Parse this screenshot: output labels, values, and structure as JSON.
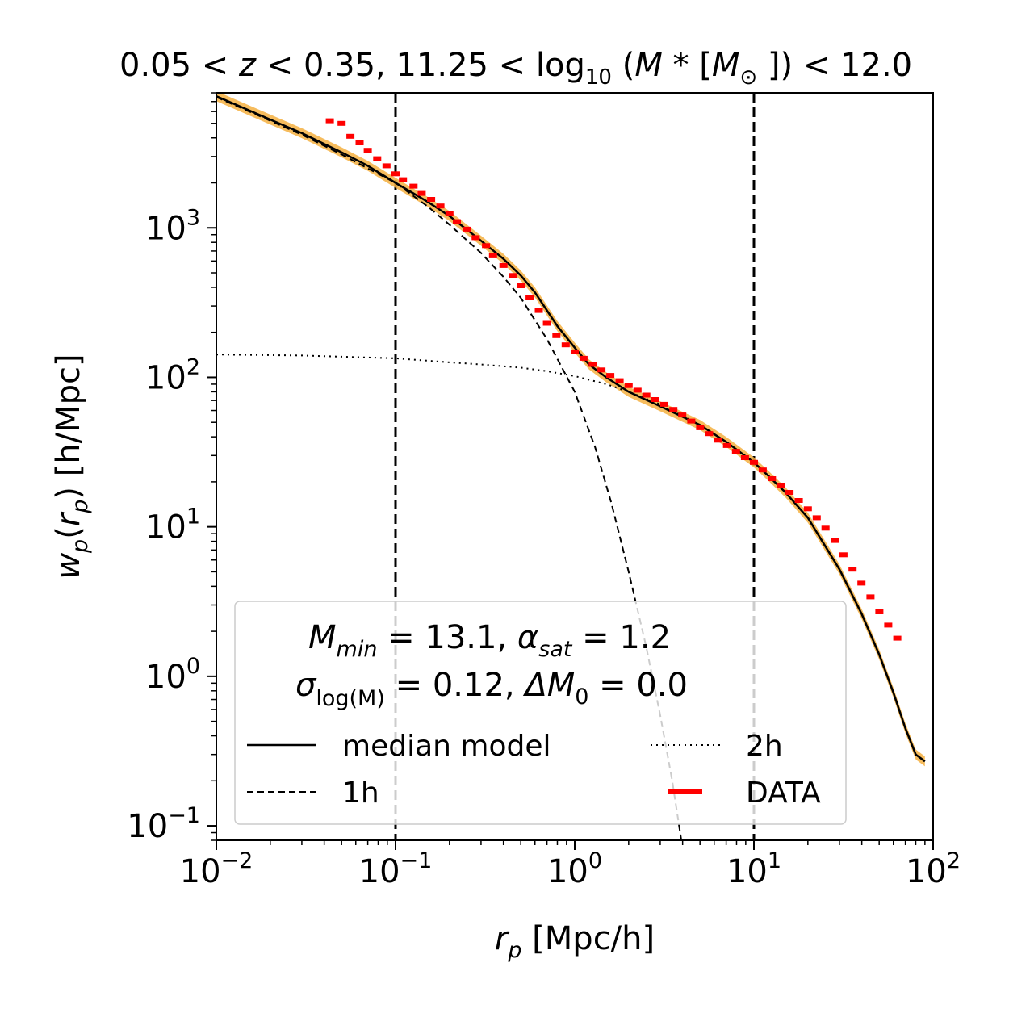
{
  "chart_data": {
    "type": "line",
    "title": {
      "prefix": "0.05 < ",
      "z": "z",
      "mid": " < 0.35, 11.25 < log",
      "log_sub": "10",
      "paren_open": " (",
      "m": "M",
      "star": " * [",
      "msun": "M",
      "sun_sub": "⊙",
      "close": " ]) < 12.0"
    },
    "xlabel": {
      "sym": "r",
      "sub": "p",
      "unit": " [Mpc/h]"
    },
    "ylabel": {
      "sym": "w",
      "sub_p": "p",
      "open": "(",
      "r": "r",
      "sub_p2": "p",
      "close": ") [h/Mpc]"
    },
    "xscale": "log",
    "yscale": "log",
    "xlim": [
      0.01,
      100
    ],
    "ylim": [
      0.08,
      8000
    ],
    "xticks": [
      {
        "value": 0.01,
        "base": "10",
        "exp": "−2"
      },
      {
        "value": 0.1,
        "base": "10",
        "exp": "−1"
      },
      {
        "value": 1,
        "base": "10",
        "exp": "0"
      },
      {
        "value": 10,
        "base": "10",
        "exp": "1"
      },
      {
        "value": 100,
        "base": "10",
        "exp": "2"
      }
    ],
    "yticks": [
      {
        "value": 0.1,
        "base": "10",
        "exp": "−1"
      },
      {
        "value": 1,
        "base": "10",
        "exp": "0"
      },
      {
        "value": 10,
        "base": "10",
        "exp": "1"
      },
      {
        "value": 100,
        "base": "10",
        "exp": "2"
      },
      {
        "value": 1000,
        "base": "10",
        "exp": "3"
      }
    ],
    "vlines": [
      0.1,
      10
    ],
    "legend": {
      "placement": "lower-left",
      "param_line1": {
        "m": "M",
        "m_sub": "min",
        "v1": " = 13.1, ",
        "alpha": "α",
        "alpha_sub": "sat",
        "v2": " = 1.2"
      },
      "param_line2": {
        "sigma": "σ",
        "sigma_sub": "log(M)",
        "v1": " = 0.12, ",
        "delta": "ΔM",
        "delta_sub": "0",
        "v2": " = 0.0"
      },
      "entries": [
        {
          "key": "median",
          "label": "median model"
        },
        {
          "key": "two_halo",
          "label": "2h"
        },
        {
          "key": "one_halo",
          "label": "1h"
        },
        {
          "key": "data",
          "label": "DATA"
        }
      ]
    },
    "colors": {
      "median": "#000000",
      "band": "#f5b041",
      "data": "#ff0000",
      "one_halo": "#000000",
      "two_halo": "#000000",
      "vline": "#000000"
    },
    "series": [
      {
        "key": "median",
        "name": "median model",
        "x": [
          0.01,
          0.02,
          0.03,
          0.05,
          0.07,
          0.1,
          0.15,
          0.2,
          0.3,
          0.4,
          0.5,
          0.6,
          0.8,
          1.0,
          1.2,
          1.5,
          2.0,
          3.0,
          5.0,
          7.0,
          10.0,
          12.0,
          15.0,
          20.0,
          30.0,
          40.0,
          50.0,
          60.0,
          70.0,
          80.0,
          90.0
        ],
        "y": [
          7600,
          5300,
          4300,
          3200,
          2600,
          2000,
          1500,
          1200,
          820,
          620,
          480,
          370,
          220,
          158,
          122,
          100,
          80,
          64,
          48,
          37,
          27,
          22,
          17,
          11.5,
          5.2,
          2.6,
          1.4,
          0.78,
          0.45,
          0.3,
          0.27
        ]
      },
      {
        "key": "one_halo",
        "name": "1h",
        "x": [
          0.01,
          0.02,
          0.03,
          0.05,
          0.07,
          0.1,
          0.15,
          0.2,
          0.3,
          0.4,
          0.5,
          0.7,
          1.0,
          1.3,
          1.6,
          2.0,
          2.5,
          3.0,
          3.5,
          4.0
        ],
        "y": [
          7500,
          5200,
          4200,
          3100,
          2500,
          2000,
          1400,
          1050,
          680,
          470,
          340,
          180,
          80,
          34,
          14.5,
          5.0,
          1.6,
          0.55,
          0.2,
          0.07
        ]
      },
      {
        "key": "two_halo",
        "name": "2h",
        "x": [
          0.01,
          0.03,
          0.1,
          0.2,
          0.3,
          0.5,
          0.7,
          1.0,
          1.5,
          2.0,
          3.0,
          5.0,
          7.0,
          10.0,
          15.0,
          20.0,
          30.0,
          40.0,
          50.0,
          60.0,
          70.0,
          80.0,
          90.0
        ],
        "y": [
          142,
          140,
          134,
          126,
          122,
          116,
          110,
          102,
          90,
          80,
          66,
          48,
          37,
          27,
          17,
          11.5,
          5.2,
          2.6,
          1.4,
          0.78,
          0.45,
          0.3,
          0.27
        ]
      },
      {
        "key": "data",
        "name": "DATA",
        "x": [
          0.043,
          0.05,
          0.056,
          0.063,
          0.07,
          0.079,
          0.089,
          0.1,
          0.11,
          0.126,
          0.14,
          0.158,
          0.178,
          0.2,
          0.22,
          0.25,
          0.28,
          0.32,
          0.35,
          0.4,
          0.45,
          0.5,
          0.56,
          0.63,
          0.7,
          0.79,
          0.89,
          1.0,
          1.12,
          1.26,
          1.41,
          1.58,
          1.78,
          2.0,
          2.24,
          2.51,
          2.82,
          3.16,
          3.55,
          3.98,
          4.47,
          5.01,
          5.62,
          6.31,
          7.08,
          7.94,
          8.91,
          10.0,
          11.2,
          12.6,
          14.1,
          15.8,
          17.8,
          20.0,
          22.4,
          25.1,
          28.2,
          31.6,
          35.5,
          39.8,
          44.7,
          50.1,
          56.2,
          63.1
        ],
        "y": [
          5200,
          5000,
          4100,
          3700,
          3300,
          2900,
          2600,
          2300,
          2100,
          1900,
          1700,
          1550,
          1400,
          1250,
          1100,
          980,
          860,
          760,
          650,
          560,
          480,
          410,
          340,
          280,
          230,
          190,
          165,
          148,
          134,
          122,
          112,
          103,
          95,
          88,
          82,
          76,
          71,
          66,
          61,
          56,
          51,
          46,
          42,
          38,
          35,
          32,
          29,
          27,
          24,
          21,
          19,
          17,
          15,
          13.2,
          11.5,
          9.8,
          8.1,
          6.5,
          5.2,
          4.2,
          3.4,
          2.7,
          2.2,
          1.8
        ]
      }
    ]
  }
}
